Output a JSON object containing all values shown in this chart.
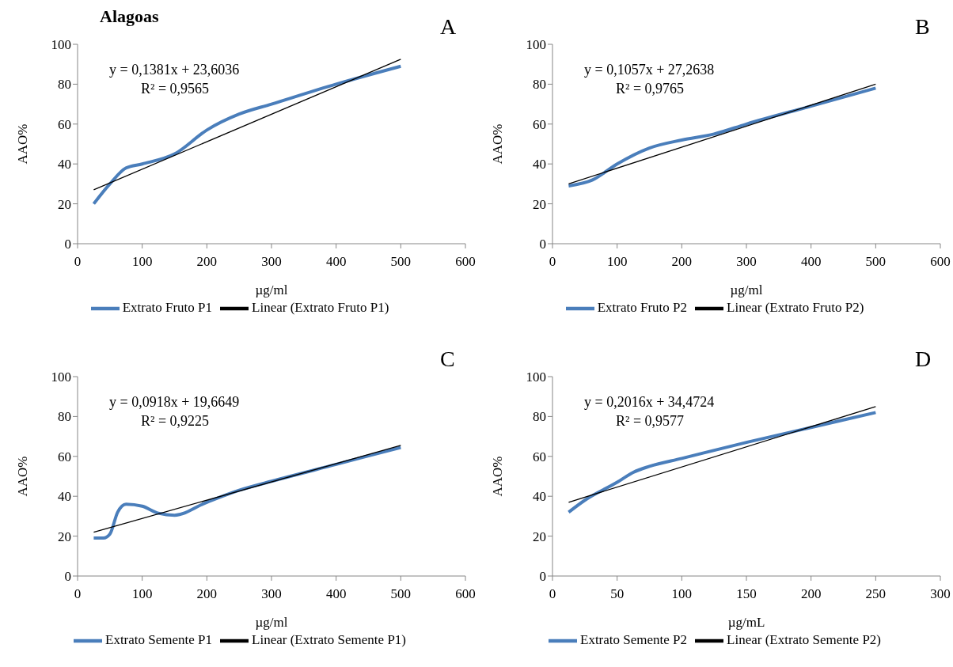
{
  "chart_data": [
    {
      "type": "line",
      "title": "Alagoas",
      "xlabel": "µg/ml",
      "ylabel": "AAO%",
      "xlim": [
        0,
        600
      ],
      "xticks": [
        0,
        100,
        200,
        300,
        400,
        500,
        600
      ],
      "ylim": [
        0,
        100
      ],
      "yticks": [
        0,
        20,
        40,
        60,
        80,
        100
      ],
      "legend": "bottom",
      "marker": "none",
      "grid": false,
      "annotations": [
        "A",
        "y = 0,1381x + 23,6036",
        "R² = 0,9565"
      ],
      "series": [
        {
          "name": "Extrato Fruto P1",
          "color": "#4a7ebb",
          "x": [
            25,
            50,
            75,
            100,
            150,
            200,
            250,
            300,
            400,
            500
          ],
          "values": [
            20,
            30,
            38,
            40,
            45,
            57,
            65,
            70,
            80,
            89
          ]
        },
        {
          "name": "Linear (Extrato Fruto P1)",
          "color": "#000000",
          "x": [
            25,
            500
          ],
          "values": [
            27,
            92.5
          ]
        }
      ]
    },
    {
      "type": "line",
      "xlabel": "µg/ml",
      "ylabel": "AAO%",
      "xlim": [
        0,
        600
      ],
      "xticks": [
        0,
        100,
        200,
        300,
        400,
        500,
        600
      ],
      "ylim": [
        0,
        100
      ],
      "yticks": [
        0,
        20,
        40,
        60,
        80,
        100
      ],
      "legend": "bottom",
      "marker": "none",
      "grid": false,
      "annotations": [
        "B",
        "y = 0,1057x + 27,2638",
        "R² = 0,9765"
      ],
      "series": [
        {
          "name": "Extrato Fruto P2",
          "color": "#4a7ebb",
          "x": [
            25,
            62,
            100,
            150,
            200,
            250,
            300,
            400,
            500
          ],
          "values": [
            29,
            32,
            40,
            48,
            52,
            55,
            60,
            69,
            78
          ]
        },
        {
          "name": "Linear (Extrato Fruto P2)",
          "color": "#000000",
          "x": [
            25,
            500
          ],
          "values": [
            30,
            80
          ]
        }
      ]
    },
    {
      "type": "line",
      "xlabel": "µg/ml",
      "ylabel": "AAO%",
      "xlim": [
        0,
        600
      ],
      "xticks": [
        0,
        100,
        200,
        300,
        400,
        500,
        600
      ],
      "ylim": [
        0,
        100
      ],
      "yticks": [
        0,
        20,
        40,
        60,
        80,
        100
      ],
      "legend": "bottom",
      "marker": "none",
      "grid": false,
      "annotations": [
        "C",
        "y = 0,0918x + 19,6649",
        "R² = 0,9225"
      ],
      "series": [
        {
          "name": "Extrato Semente P1",
          "color": "#4a7ebb",
          "x": [
            25,
            40,
            50,
            62,
            75,
            100,
            125,
            150,
            200,
            250,
            300,
            400,
            500
          ],
          "values": [
            19,
            19,
            21,
            32,
            36,
            35,
            31.5,
            30.5,
            37,
            43,
            47.5,
            56,
            64.5
          ]
        },
        {
          "name": "Linear (Extrato Semente P1)",
          "color": "#000000",
          "x": [
            25,
            500
          ],
          "values": [
            22,
            65.5
          ]
        }
      ]
    },
    {
      "type": "line",
      "xlabel": "µg/mL",
      "ylabel": "AAO%",
      "xlim": [
        0,
        300
      ],
      "xticks": [
        0,
        50,
        100,
        150,
        200,
        250,
        300
      ],
      "ylim": [
        0,
        100
      ],
      "yticks": [
        0,
        20,
        40,
        60,
        80,
        100
      ],
      "legend": "bottom",
      "marker": "none",
      "grid": false,
      "annotations": [
        "D",
        "y = 0,2016x + 34,4724",
        "R² = 0,9577"
      ],
      "series": [
        {
          "name": "Extrato Semente P2",
          "color": "#4a7ebb",
          "x": [
            12.5,
            25,
            50,
            62.5,
            75,
            100,
            150,
            200,
            250
          ],
          "values": [
            32,
            38,
            47,
            52,
            55,
            59,
            67,
            74.5,
            82
          ]
        },
        {
          "name": "Linear (Extrato Semente P2)",
          "color": "#000000",
          "x": [
            12.5,
            250
          ],
          "values": [
            37,
            85
          ]
        }
      ]
    }
  ]
}
